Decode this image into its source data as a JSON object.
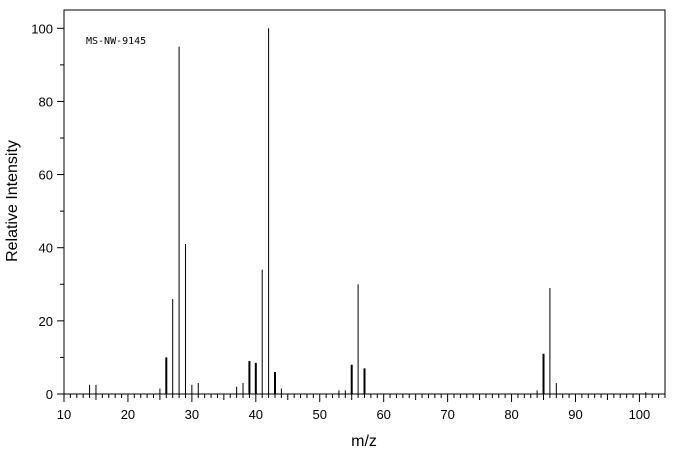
{
  "chart_data": {
    "type": "bar",
    "annotation": "MS-NW-9145",
    "xlabel": "m/z",
    "ylabel": "Relative Intensity",
    "xlim": [
      10,
      104
    ],
    "ylim": [
      0,
      105
    ],
    "x_ticks": [
      10,
      20,
      30,
      40,
      50,
      60,
      70,
      80,
      90,
      100
    ],
    "y_ticks": [
      0,
      20,
      40,
      60,
      80,
      100
    ],
    "grid": false,
    "x": [
      14,
      15,
      25,
      26,
      27,
      28,
      29,
      30,
      31,
      37,
      38,
      39,
      40,
      41,
      42,
      43,
      44,
      53,
      54,
      55,
      56,
      57,
      84,
      85,
      86,
      87,
      101
    ],
    "values": [
      2.5,
      2.5,
      1.5,
      10,
      26,
      95,
      41,
      2.5,
      3,
      2,
      3,
      9,
      8.5,
      34,
      100,
      6,
      1.5,
      1,
      1,
      8,
      30,
      7,
      1,
      11,
      29,
      3,
      0.5
    ]
  }
}
